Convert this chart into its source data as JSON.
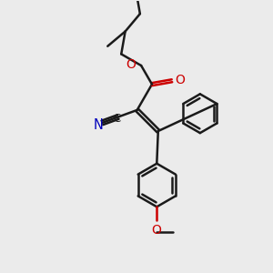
{
  "bg_color": "#ebebeb",
  "bond_color": "#1a1a1a",
  "o_color": "#cc0000",
  "n_color": "#0000bb",
  "lw": 1.8,
  "fig_w": 3.0,
  "fig_h": 3.0,
  "dpi": 100,
  "xlim": [
    0,
    10
  ],
  "ylim": [
    0,
    10
  ]
}
